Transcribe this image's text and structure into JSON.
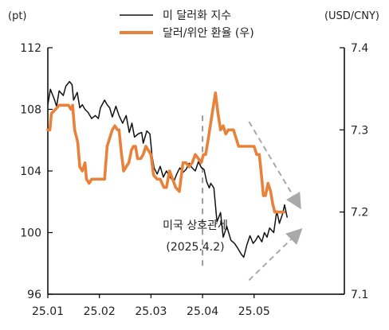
{
  "chart_data": {
    "type": "line",
    "left_axis": {
      "unit": "(pt)",
      "ylim": [
        96,
        112
      ],
      "ticks": [
        "112",
        "108",
        "104",
        "100",
        "96"
      ]
    },
    "right_axis": {
      "unit": "(USD/CNY)",
      "ylim": [
        7.1,
        7.4
      ],
      "ticks": [
        "7.4",
        "7.3",
        "7.2",
        "7.1"
      ]
    },
    "x_axis": {
      "range": [
        0,
        5.75
      ],
      "tick_positions": [
        0,
        1,
        2,
        3,
        4
      ],
      "tick_labels": [
        "25.01",
        "25.02",
        "25.03",
        "25.04",
        "25.05"
      ]
    },
    "legend_placement": "top-center",
    "series": [
      {
        "name": "미 달러화 지수",
        "axis": "left",
        "color": "#111111",
        "points": [
          [
            0.0,
            108.3
          ],
          [
            0.05,
            109.3
          ],
          [
            0.12,
            108.7
          ],
          [
            0.17,
            108.2
          ],
          [
            0.22,
            109.2
          ],
          [
            0.3,
            108.9
          ],
          [
            0.35,
            109.5
          ],
          [
            0.42,
            109.8
          ],
          [
            0.47,
            109.6
          ],
          [
            0.5,
            108.6
          ],
          [
            0.57,
            109.1
          ],
          [
            0.62,
            108.1
          ],
          [
            0.67,
            108.3
          ],
          [
            0.72,
            108.0
          ],
          [
            0.78,
            107.8
          ],
          [
            0.85,
            107.4
          ],
          [
            0.92,
            107.6
          ],
          [
            0.98,
            107.4
          ],
          [
            1.02,
            108.1
          ],
          [
            1.1,
            108.6
          ],
          [
            1.15,
            108.3
          ],
          [
            1.2,
            108.1
          ],
          [
            1.25,
            107.5
          ],
          [
            1.32,
            108.2
          ],
          [
            1.38,
            107.6
          ],
          [
            1.45,
            107.1
          ],
          [
            1.52,
            107.6
          ],
          [
            1.58,
            106.5
          ],
          [
            1.63,
            107.1
          ],
          [
            1.68,
            106.2
          ],
          [
            1.75,
            106.4
          ],
          [
            1.82,
            106.5
          ],
          [
            1.85,
            105.8
          ],
          [
            1.92,
            106.6
          ],
          [
            1.98,
            106.4
          ],
          [
            2.02,
            105.0
          ],
          [
            2.06,
            104.2
          ],
          [
            2.12,
            103.8
          ],
          [
            2.18,
            104.3
          ],
          [
            2.24,
            103.6
          ],
          [
            2.3,
            104.0
          ],
          [
            2.37,
            103.6
          ],
          [
            2.44,
            103.3
          ],
          [
            2.5,
            103.8
          ],
          [
            2.56,
            104.2
          ],
          [
            2.62,
            103.9
          ],
          [
            2.68,
            104.1
          ],
          [
            2.74,
            104.5
          ],
          [
            2.8,
            104.2
          ],
          [
            2.86,
            104.0
          ],
          [
            2.92,
            104.6
          ],
          [
            2.98,
            104.2
          ],
          [
            3.03,
            104.1
          ],
          [
            3.08,
            103.3
          ],
          [
            3.13,
            102.9
          ],
          [
            3.16,
            103.2
          ],
          [
            3.22,
            102.9
          ],
          [
            3.28,
            100.7
          ],
          [
            3.35,
            101.3
          ],
          [
            3.4,
            99.7
          ],
          [
            3.47,
            100.4
          ],
          [
            3.55,
            99.5
          ],
          [
            3.62,
            99.3
          ],
          [
            3.68,
            99.0
          ],
          [
            3.75,
            98.6
          ],
          [
            3.8,
            98.4
          ],
          [
            3.86,
            99.2
          ],
          [
            3.92,
            99.8
          ],
          [
            3.98,
            99.3
          ],
          [
            4.03,
            99.5
          ],
          [
            4.08,
            99.8
          ],
          [
            4.15,
            99.4
          ],
          [
            4.2,
            100.0
          ],
          [
            4.25,
            99.7
          ],
          [
            4.3,
            100.3
          ],
          [
            4.38,
            100.0
          ],
          [
            4.44,
            101.4
          ],
          [
            4.49,
            100.6
          ],
          [
            4.55,
            101.2
          ],
          [
            4.59,
            101.8
          ],
          [
            4.64,
            101.0
          ]
        ]
      },
      {
        "name": "달러/위안 환율 (우)",
        "axis": "right",
        "color": "#e8823b",
        "points": [
          [
            0.0,
            7.3
          ],
          [
            0.04,
            7.3
          ],
          [
            0.07,
            7.32
          ],
          [
            0.15,
            7.325
          ],
          [
            0.22,
            7.33
          ],
          [
            0.3,
            7.33
          ],
          [
            0.4,
            7.33
          ],
          [
            0.45,
            7.325
          ],
          [
            0.48,
            7.33
          ],
          [
            0.52,
            7.3
          ],
          [
            0.58,
            7.285
          ],
          [
            0.62,
            7.255
          ],
          [
            0.67,
            7.25
          ],
          [
            0.72,
            7.26
          ],
          [
            0.75,
            7.24
          ],
          [
            0.8,
            7.235
          ],
          [
            0.85,
            7.24
          ],
          [
            0.9,
            7.24
          ],
          [
            0.95,
            7.24
          ],
          [
            1.0,
            7.24
          ],
          [
            1.05,
            7.24
          ],
          [
            1.1,
            7.24
          ],
          [
            1.15,
            7.28
          ],
          [
            1.2,
            7.29
          ],
          [
            1.25,
            7.3
          ],
          [
            1.3,
            7.305
          ],
          [
            1.35,
            7.3
          ],
          [
            1.38,
            7.3
          ],
          [
            1.42,
            7.275
          ],
          [
            1.47,
            7.25
          ],
          [
            1.52,
            7.255
          ],
          [
            1.57,
            7.26
          ],
          [
            1.62,
            7.275
          ],
          [
            1.66,
            7.28
          ],
          [
            1.7,
            7.28
          ],
          [
            1.74,
            7.265
          ],
          [
            1.8,
            7.265
          ],
          [
            1.85,
            7.27
          ],
          [
            1.9,
            7.28
          ],
          [
            1.95,
            7.275
          ],
          [
            2.0,
            7.27
          ],
          [
            2.05,
            7.245
          ],
          [
            2.12,
            7.24
          ],
          [
            2.18,
            7.24
          ],
          [
            2.25,
            7.23
          ],
          [
            2.3,
            7.23
          ],
          [
            2.36,
            7.25
          ],
          [
            2.42,
            7.24
          ],
          [
            2.48,
            7.23
          ],
          [
            2.55,
            7.225
          ],
          [
            2.62,
            7.26
          ],
          [
            2.68,
            7.26
          ],
          [
            2.74,
            7.255
          ],
          [
            2.8,
            7.26
          ],
          [
            2.86,
            7.27
          ],
          [
            2.92,
            7.265
          ],
          [
            2.97,
            7.26
          ],
          [
            3.02,
            7.27
          ],
          [
            3.06,
            7.27
          ],
          [
            3.1,
            7.285
          ],
          [
            3.15,
            7.305
          ],
          [
            3.2,
            7.325
          ],
          [
            3.25,
            7.345
          ],
          [
            3.3,
            7.32
          ],
          [
            3.35,
            7.3
          ],
          [
            3.4,
            7.305
          ],
          [
            3.45,
            7.295
          ],
          [
            3.5,
            7.3
          ],
          [
            3.55,
            7.3
          ],
          [
            3.6,
            7.3
          ],
          [
            3.65,
            7.29
          ],
          [
            3.7,
            7.28
          ],
          [
            3.75,
            7.28
          ],
          [
            3.8,
            7.28
          ],
          [
            3.9,
            7.28
          ],
          [
            4.0,
            7.28
          ],
          [
            4.05,
            7.27
          ],
          [
            4.1,
            7.27
          ],
          [
            4.15,
            7.24
          ],
          [
            4.18,
            7.22
          ],
          [
            4.22,
            7.22
          ],
          [
            4.27,
            7.235
          ],
          [
            4.32,
            7.225
          ],
          [
            4.36,
            7.21
          ],
          [
            4.4,
            7.2
          ],
          [
            4.45,
            7.2
          ],
          [
            4.5,
            7.2
          ],
          [
            4.58,
            7.2
          ]
        ]
      }
    ],
    "annotations": {
      "event_line_x": 3.0,
      "event_label": [
        "미국 상호관세",
        "(2025.4.2)"
      ],
      "trend_arrows": [
        {
          "axis": "right",
          "from": [
            3.9,
            7.31
          ],
          "to": [
            4.85,
            7.21
          ]
        },
        {
          "axis": "right",
          "from": [
            3.9,
            7.117
          ],
          "to": [
            4.85,
            7.175
          ]
        }
      ]
    }
  }
}
